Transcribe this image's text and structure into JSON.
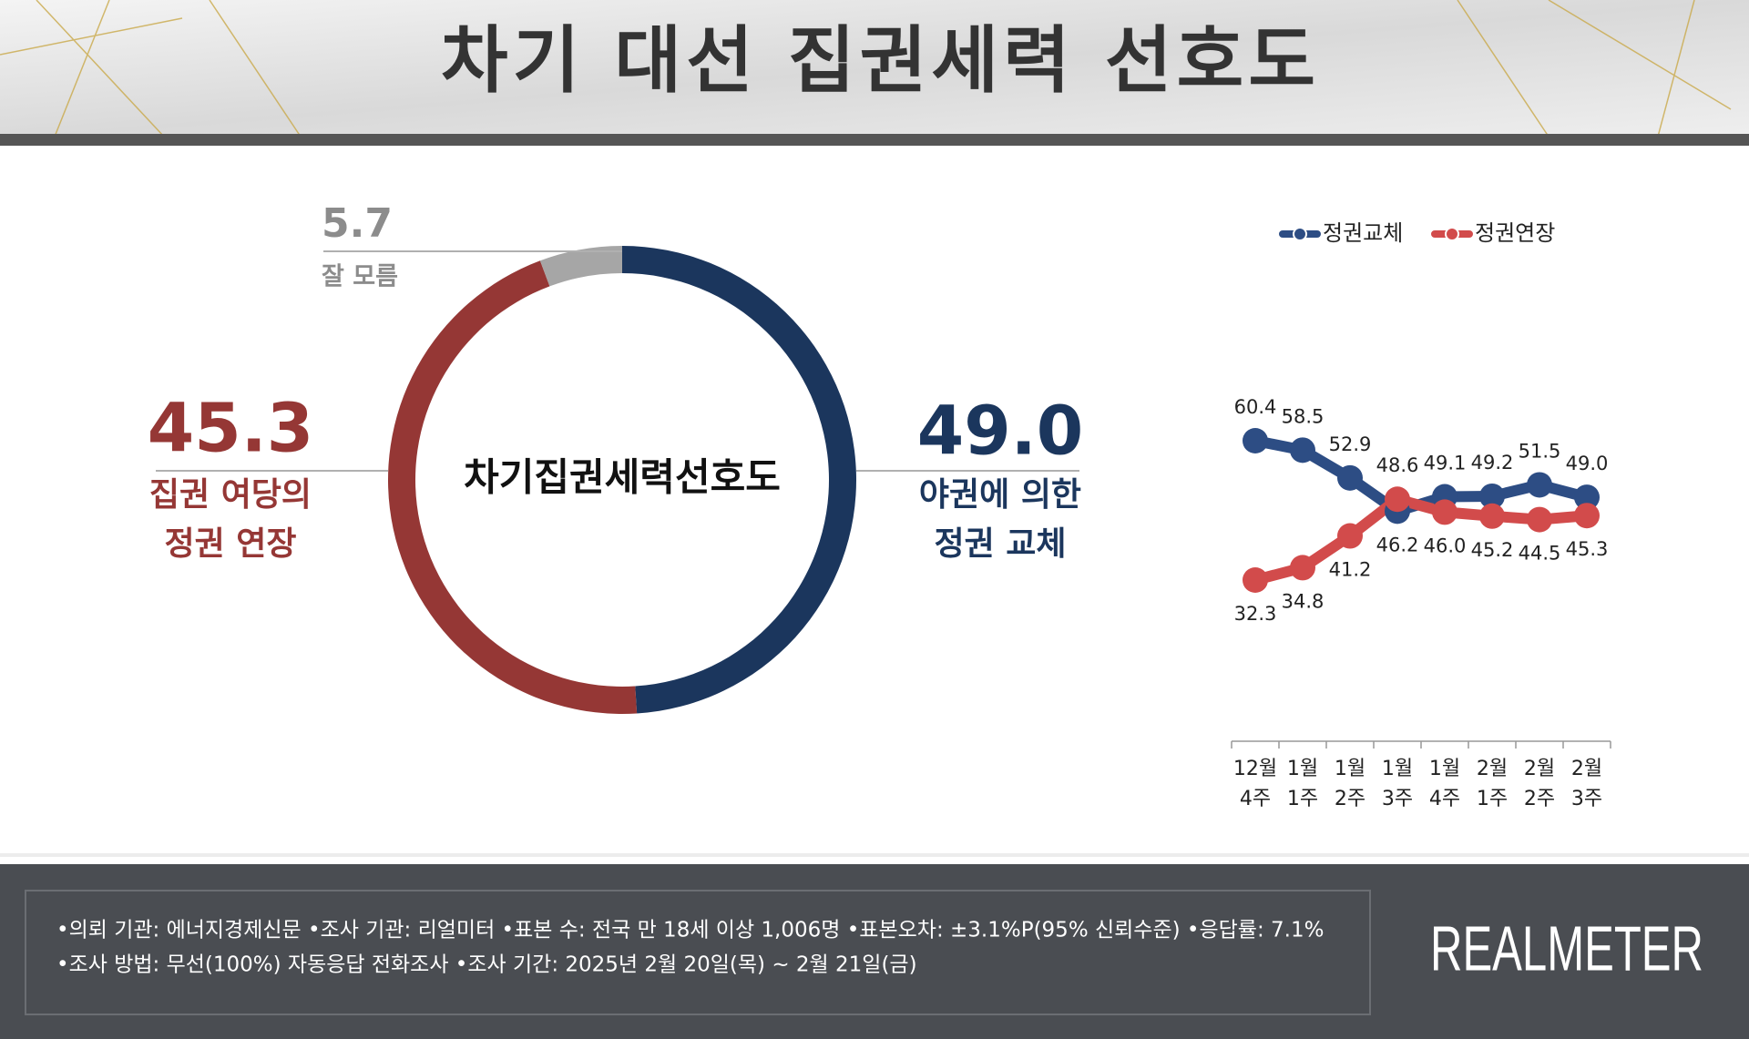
{
  "title": "차기 대선 집권세력 선호도",
  "chart_data": [
    {
      "type": "pie",
      "center_label": "차기집권세력선호도",
      "categories": [
        "야권에 의한\n정권 교체",
        "집권 여당의\n정권 연장",
        "잘 모름"
      ],
      "values": [
        49.0,
        45.3,
        5.7
      ],
      "value_labels": [
        "49.0",
        "45.3",
        "5.7"
      ],
      "colors": [
        "#1b365d",
        "#953735",
        "#a6a6a6"
      ]
    },
    {
      "type": "line",
      "categories": [
        "12월\n4주",
        "1월\n1주",
        "1월\n2주",
        "1월\n3주",
        "1월\n4주",
        "2월\n1주",
        "2월\n2주",
        "2월\n3주"
      ],
      "series": [
        {
          "name": "정권교체",
          "color": "#2d4d84",
          "values": [
            60.4,
            58.5,
            52.9,
            46.2,
            49.1,
            49.2,
            51.5,
            49.0
          ],
          "value_labels": [
            "60.4",
            "58.5",
            "52.9",
            "46.2",
            "49.1",
            "49.2",
            "51.5",
            "49.0"
          ]
        },
        {
          "name": "정권연장",
          "color": "#d24b4b",
          "values": [
            32.3,
            34.8,
            41.2,
            48.6,
            46.0,
            45.2,
            44.5,
            45.3
          ],
          "value_labels": [
            "32.3",
            "34.8",
            "41.2",
            "48.6",
            "46.0",
            "45.2",
            "44.5",
            "45.3"
          ]
        }
      ],
      "legend": "top"
    }
  ],
  "footer": {
    "lines": [
      "•의뢰 기관: 에너지경제신문 •조사 기관: 리얼미터 •표본 수: 전국 만 18세 이상 1,006명 •표본오차: ±3.1%P(95% 신뢰수준) •응답률: 7.1%",
      "•조사 방법: 무선(100%) 자동응답 전화조사 •조사 기간: 2025년 2월 20일(목) ~ 2월 21일(금)"
    ],
    "brand": "REALMETER"
  }
}
